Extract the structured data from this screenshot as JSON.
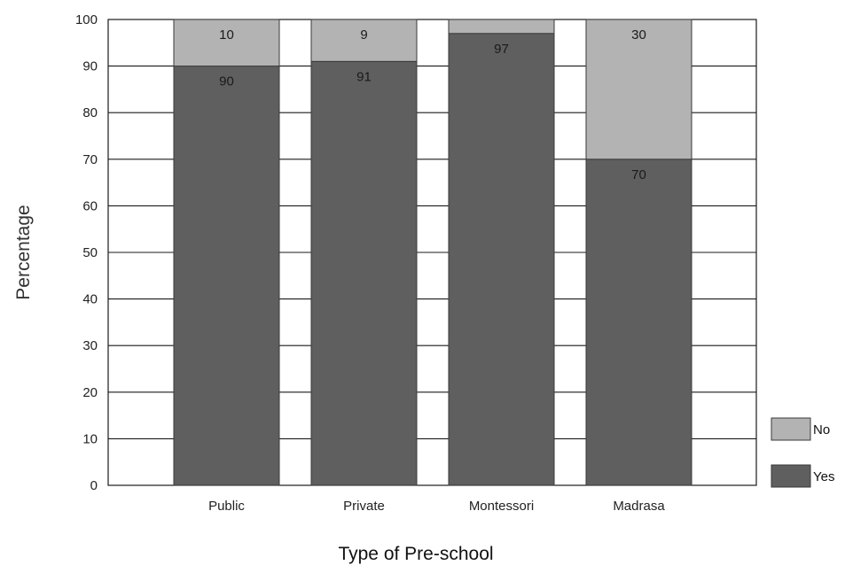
{
  "chart_data": {
    "type": "bar",
    "stacked": true,
    "orientation": "vertical",
    "categories": [
      "Public",
      "Private",
      "Montessori",
      "Madrasa"
    ],
    "series": [
      {
        "name": "Yes",
        "values": [
          90,
          91,
          97,
          70
        ],
        "labels": [
          "90",
          "91",
          "97",
          "70"
        ],
        "color": "#5f5f5f"
      },
      {
        "name": "No",
        "values": [
          10,
          9,
          3,
          30
        ],
        "labels": [
          "10",
          "9",
          "",
          "30"
        ],
        "color": "#b3b3b3"
      }
    ],
    "title": "",
    "xlabel": "Type of Pre-school",
    "ylabel": "Percentage",
    "ylim": [
      0,
      100
    ],
    "yticks": [
      0,
      10,
      20,
      30,
      40,
      50,
      60,
      70,
      80,
      90,
      100
    ],
    "ytick_labels": [
      "0",
      "10",
      "20",
      "30",
      "40",
      "50",
      "60",
      "70",
      "80",
      "90",
      "100"
    ],
    "grid": true,
    "legend_position": "right-bottom",
    "legend": [
      {
        "label": "No",
        "color": "#b3b3b3"
      },
      {
        "label": "Yes",
        "color": "#5f5f5f"
      }
    ],
    "gridline_color": "#1a1a1a",
    "axis_label_color": "#333333"
  }
}
